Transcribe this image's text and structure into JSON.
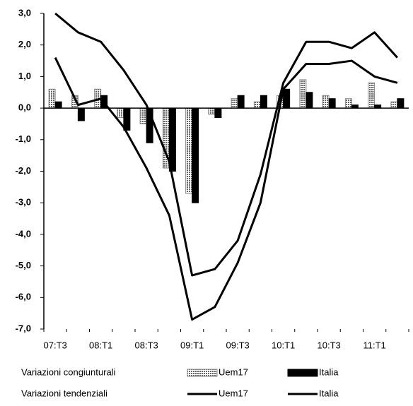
{
  "chart_data": {
    "type": "combo",
    "categories": [
      "07:T3",
      null,
      "08:T1",
      null,
      "08:T3",
      null,
      "09:T1",
      null,
      "09:T3",
      null,
      "10:T1",
      null,
      "10:T3",
      null,
      "11:T1",
      null
    ],
    "ylim": [
      -7,
      3
    ],
    "yticks": [
      {
        "value": 3,
        "label": "3,0"
      },
      {
        "value": 2,
        "label": "2,0"
      },
      {
        "value": 1,
        "label": "1,0"
      },
      {
        "value": 0,
        "label": "0,0"
      },
      {
        "value": -1,
        "label": "-1,0"
      },
      {
        "value": -2,
        "label": "-2,0"
      },
      {
        "value": -3,
        "label": "-3,0"
      },
      {
        "value": -4,
        "label": "-4,0"
      },
      {
        "value": -5,
        "label": "-5,0"
      },
      {
        "value": -6,
        "label": "-6,0"
      },
      {
        "value": -7,
        "label": "-7,0"
      }
    ],
    "legend_groups": [
      "Variazioni congiunturali",
      "Variazioni tendenziali"
    ],
    "series": [
      {
        "name": "Uem17",
        "type": "bar",
        "color": "#8a8a8a",
        "values": [
          0.6,
          0.4,
          0.6,
          -0.3,
          -0.5,
          -1.9,
          -2.7,
          -0.2,
          0.3,
          0.2,
          0.4,
          0.9,
          0.4,
          0.3,
          0.8,
          0.2
        ]
      },
      {
        "name": "Italia",
        "type": "bar",
        "color": "#000000",
        "values": [
          0.2,
          -0.4,
          0.4,
          -0.7,
          -1.1,
          -2.0,
          -3.0,
          -0.3,
          0.4,
          0.4,
          0.6,
          0.5,
          0.3,
          0.1,
          0.1,
          0.3
        ]
      },
      {
        "name": "Uem17",
        "type": "line",
        "color": "#000000",
        "values": [
          3.0,
          2.4,
          2.1,
          1.2,
          0.1,
          -1.7,
          -5.3,
          -5.1,
          -4.2,
          -2.1,
          0.8,
          2.1,
          2.1,
          1.9,
          2.4,
          1.6
        ]
      },
      {
        "name": "Italia",
        "type": "line",
        "color": "#000000",
        "values": [
          1.6,
          0.1,
          0.3,
          -0.6,
          -1.9,
          -3.4,
          -6.7,
          -6.3,
          -4.9,
          -3.0,
          0.6,
          1.4,
          1.4,
          1.5,
          1.0,
          0.8
        ]
      }
    ]
  }
}
